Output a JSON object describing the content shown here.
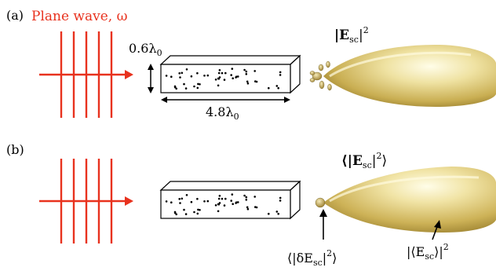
{
  "panel_a": {
    "tag": "(a)",
    "title": "Plane wave, ω",
    "dim_height": "0.6λ",
    "dim_height_sub": "0",
    "dim_length": "4.8λ",
    "dim_length_sub": "0",
    "pattern_label": "|E",
    "pattern_label_sub": "sc",
    "pattern_label_sup": "2"
  },
  "panel_b": {
    "tag": "(b)",
    "pattern_label": "⟨|E",
    "pattern_label_sub": "sc",
    "pattern_label_sup": "2",
    "pattern_label_end": "⟩",
    "incoherent_label": "⟨|δE",
    "incoherent_label_sub": "sc",
    "incoherent_label_sup": "2",
    "incoherent_label_end": "⟩",
    "coherent_label": "|⟨E",
    "coherent_label_sub": "sc",
    "coherent_label_mid": "⟩|",
    "coherent_label_sup": "2"
  },
  "colors": {
    "wave": "#e8321e",
    "lobe_highlight": "#fbf8d8",
    "lobe_mid": "#e9d98d",
    "lobe_shadow": "#a88a2c"
  }
}
